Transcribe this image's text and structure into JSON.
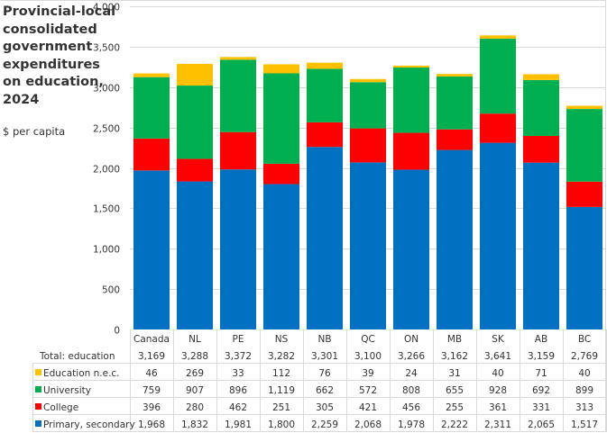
{
  "chart_data": {
    "type": "bar",
    "stacked": true,
    "title": "Provincial-local consolidated government expenditures on education, 2024",
    "subtitle": "$ per capita",
    "xlabel": "",
    "ylabel": "",
    "ylim": [
      0,
      4000
    ],
    "yticks": [
      0,
      500,
      1000,
      1500,
      2000,
      2500,
      3000,
      3500,
      4000
    ],
    "ytick_labels": [
      "0",
      "500",
      "1,000",
      "1,500",
      "2,000",
      "2,500",
      "3,000",
      "3,500",
      "4,000"
    ],
    "grid": true,
    "legend": "data-table-below",
    "categories": [
      "Canada",
      "NL",
      "PE",
      "NS",
      "NB",
      "QC",
      "ON",
      "MB",
      "SK",
      "AB",
      "BC"
    ],
    "series": [
      {
        "name": "Primary, secondary",
        "color": "#0070C0",
        "values": [
          1968,
          1832,
          1981,
          1800,
          2259,
          2068,
          1978,
          2222,
          2311,
          2065,
          1517
        ],
        "labels": [
          "1,968",
          "1,832",
          "1,981",
          "1,800",
          "2,259",
          "2,068",
          "1,978",
          "2,222",
          "2,311",
          "2,065",
          "1,517"
        ]
      },
      {
        "name": "College",
        "color": "#FF0000",
        "values": [
          396,
          280,
          462,
          251,
          305,
          421,
          456,
          255,
          361,
          331,
          313
        ],
        "labels": [
          "396",
          "280",
          "462",
          "251",
          "305",
          "421",
          "456",
          "255",
          "361",
          "331",
          "313"
        ]
      },
      {
        "name": "University",
        "color": "#00B050",
        "values": [
          759,
          907,
          896,
          1119,
          662,
          572,
          808,
          655,
          928,
          692,
          899
        ],
        "labels": [
          "759",
          "907",
          "896",
          "1,119",
          "662",
          "572",
          "808",
          "655",
          "928",
          "692",
          "899"
        ]
      },
      {
        "name": "Education n.e.c.",
        "color": "#FFC000",
        "values": [
          46,
          269,
          33,
          112,
          76,
          39,
          24,
          31,
          40,
          71,
          40
        ],
        "labels": [
          "46",
          "269",
          "33",
          "112",
          "76",
          "39",
          "24",
          "31",
          "40",
          "71",
          "40"
        ]
      }
    ],
    "totals": {
      "name": "Total: education",
      "values": [
        3169,
        3288,
        3372,
        3282,
        3301,
        3100,
        3266,
        3162,
        3641,
        3159,
        2769
      ],
      "labels": [
        "3,169",
        "3,288",
        "3,372",
        "3,282",
        "3,301",
        "3,100",
        "3,266",
        "3,162",
        "3,641",
        "3,159",
        "2,769"
      ]
    },
    "table_row_order": [
      "Education n.e.c.",
      "University",
      "College",
      "Primary, secondary"
    ]
  }
}
